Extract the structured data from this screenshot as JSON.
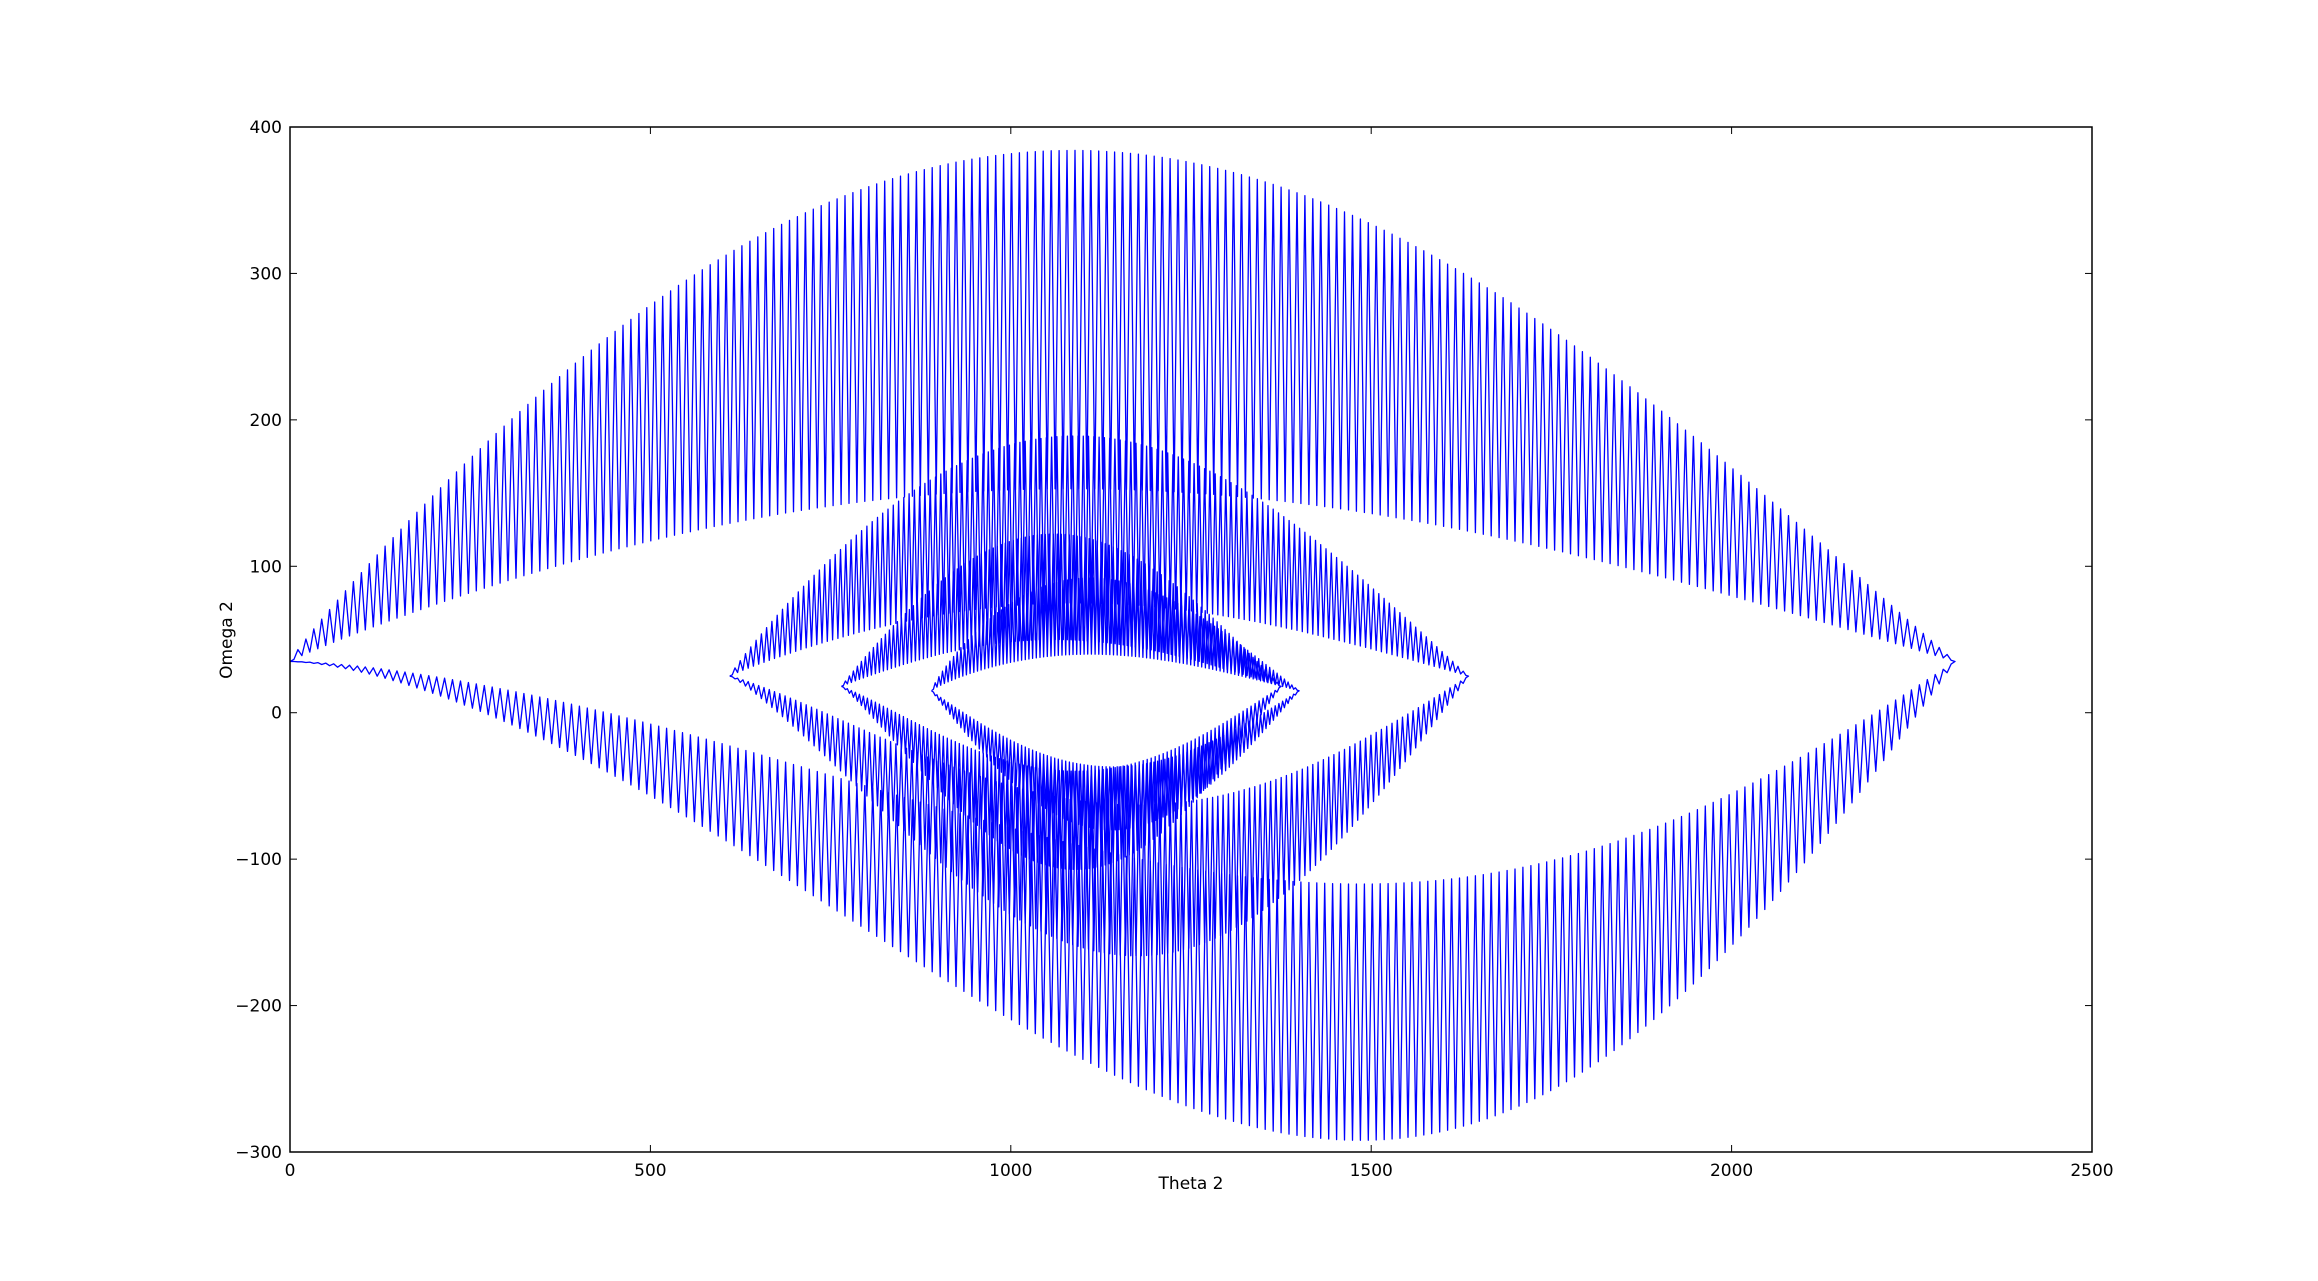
{
  "chart_data": {
    "type": "line",
    "title": "",
    "xlabel": "Theta 2",
    "ylabel": "Omega 2",
    "xlim": [
      0,
      2500
    ],
    "ylim": [
      -300,
      400
    ],
    "xticks": [
      0,
      500,
      1000,
      1500,
      2000,
      2500
    ],
    "yticks": [
      -300,
      -200,
      -100,
      0,
      100,
      200,
      300,
      400
    ],
    "xtick_labels": [
      "0",
      "500",
      "1000",
      "1500",
      "2000",
      "2500"
    ],
    "ytick_labels": [
      "−300",
      "−200",
      "−100",
      "0",
      "100",
      "200",
      "300",
      "400"
    ],
    "grid": false,
    "line_color": "#0000ff",
    "series": [
      {
        "description_of_shape": "phase-space trajectory: oscillating spirals around nested ellipses",
        "rings": [
          {
            "center_x": 1160,
            "center_y": 35,
            "x_min": 0,
            "x_max": 2310,
            "outer_top": 384,
            "inner_top": 153,
            "outer_bottom": -292,
            "inner_bottom": -117,
            "crest_x": 1085,
            "trough_x": 1485,
            "oscillations": 210
          },
          {
            "center_x": 1125,
            "center_y": 25,
            "x_min": 610,
            "x_max": 1635,
            "outer_top": 189,
            "inner_top": 75,
            "outer_bottom": -166,
            "inner_bottom": -63,
            "crest_x": 1090,
            "trough_x": 1175,
            "oscillations": 140
          },
          {
            "center_x": 1070,
            "center_y": 18,
            "x_min": 765,
            "x_max": 1375,
            "outer_top": 122,
            "inner_top": 50,
            "outer_bottom": -107,
            "inner_bottom": -40,
            "crest_x": 1060,
            "trough_x": 1090,
            "oscillations": 110
          },
          {
            "center_x": 1130,
            "center_y": 15,
            "x_min": 890,
            "x_max": 1400,
            "outer_top": 92,
            "inner_top": 40,
            "outer_bottom": -80,
            "inner_bottom": -37,
            "crest_x": 1110,
            "trough_x": 1140,
            "oscillations": 100
          }
        ]
      }
    ]
  }
}
